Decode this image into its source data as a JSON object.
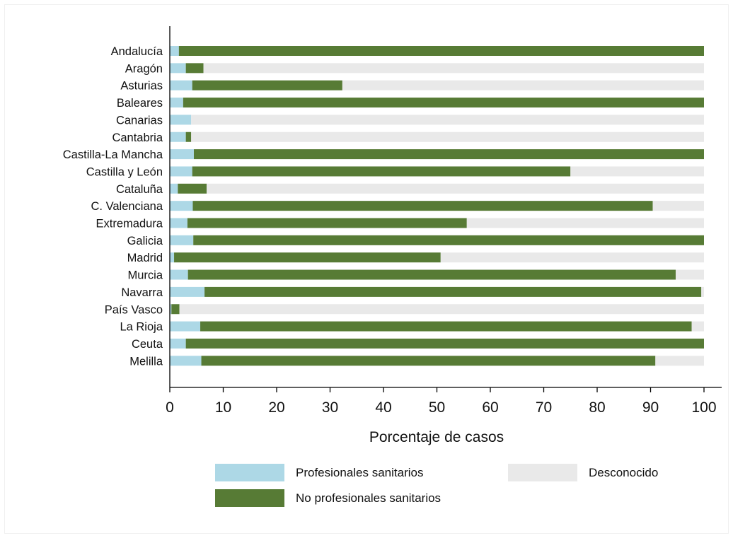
{
  "chart_data": {
    "type": "bar",
    "orientation": "horizontal",
    "stacked": true,
    "xlabel": "Porcentaje de casos",
    "xlim": [
      0,
      100
    ],
    "xticks": [
      0,
      10,
      20,
      30,
      40,
      50,
      60,
      70,
      80,
      90,
      100
    ],
    "grid": false,
    "legend_position": "bottom",
    "categories": [
      "Andalucía",
      "Aragón",
      "Asturias",
      "Baleares",
      "Canarias",
      "Cantabria",
      "Castilla-La Mancha",
      "Castilla y León",
      "Cataluña",
      "C. Valenciana",
      "Extremadura",
      "Galicia",
      "Madrid",
      "Murcia",
      "Navarra",
      "País Vasco",
      "La Rioja",
      "Ceuta",
      "Melilla"
    ],
    "series": [
      {
        "name": "Profesionales sanitarios",
        "color": "#add8e6",
        "values": [
          1.7,
          3.0,
          4.2,
          2.5,
          4.0,
          3.0,
          4.5,
          4.2,
          1.5,
          4.3,
          3.3,
          4.4,
          0.8,
          3.4,
          6.5,
          0.3,
          5.7,
          3.0,
          5.9
        ]
      },
      {
        "name": "No profesionales sanitarios",
        "color": "#577b35",
        "values": [
          98.3,
          3.3,
          28.1,
          97.5,
          0.0,
          1.0,
          95.5,
          70.8,
          5.4,
          86.1,
          52.3,
          95.6,
          49.9,
          91.3,
          93.0,
          1.5,
          92.0,
          97.0,
          85.0
        ]
      },
      {
        "name": "Desconocido",
        "color": "#e9e9e9",
        "values": [
          0.0,
          93.7,
          67.7,
          0.0,
          96.0,
          96.0,
          0.0,
          25.0,
          93.1,
          9.6,
          44.4,
          0.0,
          49.3,
          5.3,
          0.5,
          98.2,
          2.3,
          0.0,
          9.1
        ]
      }
    ]
  },
  "legend": {
    "items": [
      {
        "label": "Profesionales sanitarios",
        "color": "#add8e6"
      },
      {
        "label": "Desconocido",
        "color": "#e9e9e9"
      },
      {
        "label": "No profesionales sanitarios",
        "color": "#577b35"
      }
    ]
  }
}
